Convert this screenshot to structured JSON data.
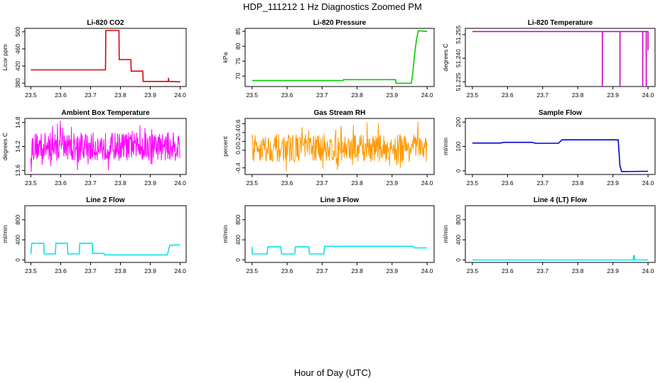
{
  "title": "HDP_111212  1 Hz Diagnostics Zoomed PM",
  "xlabel": "Hour of Day (UTC)",
  "chart_data": [
    {
      "type": "line",
      "title": "Li-820 CO2",
      "ylabel": "Licor ppm",
      "color": "#dd0000",
      "xlim": [
        23.5,
        24.0
      ],
      "xticks": [
        23.5,
        23.6,
        23.7,
        23.8,
        23.9,
        24.0
      ],
      "xticklabels": [
        "23.5",
        "23.6",
        "23.7",
        "23.8",
        "23.9",
        "24.0"
      ],
      "ylim": [
        372,
        508
      ],
      "yticks": [
        380,
        420,
        460,
        500
      ],
      "yticklabels": [
        "380",
        "420",
        "460",
        "500"
      ],
      "series": [
        {
          "x": [
            23.5,
            23.75,
            23.751,
            23.795,
            23.796,
            23.835,
            23.836,
            23.875,
            23.876,
            23.96,
            23.961,
            23.962,
            24.0
          ],
          "y": [
            411,
            411,
            503,
            503,
            435,
            435,
            408,
            408,
            384,
            384,
            392,
            384,
            383
          ]
        }
      ]
    },
    {
      "type": "line",
      "title": "Li-820 Pressure",
      "ylabel": "kPa",
      "color": "#00cc00",
      "xlim": [
        23.5,
        24.0
      ],
      "xticks": [
        23.5,
        23.6,
        23.7,
        23.8,
        23.9,
        24.0
      ],
      "xticklabels": [
        "23.5",
        "23.6",
        "23.7",
        "23.8",
        "23.9",
        "24.0"
      ],
      "ylim": [
        66.5,
        86
      ],
      "yticks": [
        70,
        75,
        80,
        85
      ],
      "yticklabels": [
        "70",
        "75",
        "80",
        "85"
      ],
      "series": [
        {
          "x": [
            23.5,
            23.76,
            23.761,
            23.91,
            23.911,
            23.955,
            23.96,
            23.965,
            23.97,
            23.975,
            24.0
          ],
          "y": [
            68.5,
            68.5,
            68.8,
            68.8,
            67.6,
            67.6,
            72,
            78,
            82.5,
            85.2,
            85.0
          ]
        }
      ]
    },
    {
      "type": "line",
      "title": "Li-820 Temperature",
      "ylabel": "degrees C",
      "color": "#cc00cc",
      "xlim": [
        23.5,
        24.0
      ],
      "xticks": [
        23.5,
        23.6,
        23.7,
        23.8,
        23.9,
        24.0
      ],
      "xticklabels": [
        "23.5",
        "23.6",
        "23.7",
        "23.8",
        "23.9",
        "24.0"
      ],
      "ylim": [
        51.222,
        51.259
      ],
      "yticks": [
        51.225,
        51.24,
        51.255
      ],
      "yticklabels": [
        "51.225",
        "51.240",
        "51.255"
      ],
      "series": [
        {
          "x": [
            23.5,
            23.87,
            23.87,
            23.87,
            23.92,
            23.92,
            23.92,
            23.985,
            23.985,
            23.985,
            23.995,
            23.995,
            23.995,
            24.0,
            24.0,
            24.0
          ],
          "y": [
            51.257,
            51.257,
            51.222,
            51.257,
            51.257,
            51.222,
            51.257,
            51.257,
            51.222,
            51.257,
            51.257,
            51.222,
            51.257,
            51.257,
            51.245,
            51.257
          ]
        }
      ]
    },
    {
      "type": "line",
      "title": "Ambient Box Temperature",
      "ylabel": "degrees C",
      "color": "#ff00ff",
      "noise": true,
      "xlim": [
        23.5,
        24.0
      ],
      "xticks": [
        23.5,
        23.6,
        23.7,
        23.8,
        23.9,
        24.0
      ],
      "xticklabels": [
        "23.5",
        "23.6",
        "23.7",
        "23.8",
        "23.9",
        "24.0"
      ],
      "ylim": [
        13.5,
        14.9
      ],
      "yticks": [
        13.6,
        14.2,
        14.8
      ],
      "yticklabels": [
        "13.6",
        "14.2",
        "14.8"
      ],
      "series": [
        {
          "center": 14.2,
          "min": 13.55,
          "max": 14.85
        }
      ]
    },
    {
      "type": "line",
      "title": "Gas Stream RH",
      "ylabel": "percent",
      "color": "#ff9900",
      "noise": true,
      "xlim": [
        23.5,
        24.0
      ],
      "xticks": [
        23.5,
        23.6,
        23.7,
        23.8,
        23.9,
        24.0
      ],
      "xticklabels": [
        "23.5",
        "23.6",
        "23.7",
        "23.8",
        "23.9",
        "24.0"
      ],
      "ylim": [
        -0.55,
        0.72
      ],
      "yticks": [
        -0.4,
        0.0,
        0.2,
        0.4,
        0.6
      ],
      "yticklabels": [
        "-0.4",
        "0.0",
        "0.2",
        "0.4",
        "0.6"
      ],
      "series": [
        {
          "center": 0.05,
          "min": -0.5,
          "max": 0.65
        }
      ]
    },
    {
      "type": "line",
      "title": "Sample Flow",
      "ylabel": "ml/min",
      "color": "#0000cc",
      "xlim": [
        23.5,
        24.0
      ],
      "xticks": [
        23.5,
        23.6,
        23.7,
        23.8,
        23.9,
        24.0
      ],
      "xticklabels": [
        "23.5",
        "23.6",
        "23.7",
        "23.8",
        "23.9",
        "24.0"
      ],
      "ylim": [
        -15,
        215
      ],
      "yticks": [
        0,
        100,
        200
      ],
      "yticklabels": [
        "0",
        "100",
        "200"
      ],
      "series": [
        {
          "x": [
            23.5,
            23.58,
            23.59,
            23.67,
            23.68,
            23.745,
            23.755,
            23.915,
            23.92,
            23.925,
            24.0
          ],
          "y": [
            114,
            114,
            117,
            117,
            113,
            113,
            127,
            127,
            20,
            -3,
            -2
          ]
        }
      ]
    },
    {
      "type": "line",
      "title": "Line 2 Flow",
      "ylabel": "ml/min",
      "color": "#00e5ee",
      "xlim": [
        23.5,
        24.0
      ],
      "xticks": [
        23.5,
        23.6,
        23.7,
        23.8,
        23.9,
        24.0
      ],
      "xticklabels": [
        "23.5",
        "23.6",
        "23.7",
        "23.8",
        "23.9",
        "24.0"
      ],
      "ylim": [
        -50,
        1080
      ],
      "yticks": [
        0,
        400,
        800
      ],
      "yticklabels": [
        "0",
        "400",
        "800"
      ],
      "series": [
        {
          "x": [
            23.5,
            23.503,
            23.543,
            23.545,
            23.582,
            23.584,
            23.622,
            23.624,
            23.662,
            23.664,
            23.705,
            23.707,
            23.745,
            23.747,
            23.957,
            23.965,
            24.0
          ],
          "y": [
            120,
            330,
            330,
            120,
            120,
            330,
            330,
            120,
            120,
            330,
            330,
            130,
            130,
            100,
            100,
            290,
            300
          ]
        }
      ]
    },
    {
      "type": "line",
      "title": "Line 3 Flow",
      "ylabel": "ml/min",
      "color": "#00e5ee",
      "xlim": [
        23.5,
        24.0
      ],
      "xticks": [
        23.5,
        23.6,
        23.7,
        23.8,
        23.9,
        24.0
      ],
      "xticklabels": [
        "23.5",
        "23.6",
        "23.7",
        "23.8",
        "23.9",
        "24.0"
      ],
      "ylim": [
        -50,
        1080
      ],
      "yticks": [
        0,
        400,
        800
      ],
      "yticklabels": [
        "0",
        "400",
        "800"
      ],
      "series": [
        {
          "x": [
            23.5,
            23.5,
            23.502,
            23.543,
            23.545,
            23.582,
            23.584,
            23.622,
            23.624,
            23.662,
            23.664,
            23.705,
            23.707,
            23.96,
            23.962,
            24.0
          ],
          "y": [
            260,
            120,
            120,
            120,
            260,
            260,
            120,
            120,
            260,
            260,
            120,
            120,
            270,
            270,
            240,
            240
          ]
        }
      ]
    },
    {
      "type": "line",
      "title": "Line 4 (LT) Flow",
      "ylabel": "ml/min",
      "color": "#00e5ee",
      "xlim": [
        23.5,
        24.0
      ],
      "xticks": [
        23.5,
        23.6,
        23.7,
        23.8,
        23.9,
        24.0
      ],
      "xticklabels": [
        "23.5",
        "23.6",
        "23.7",
        "23.8",
        "23.9",
        "24.0"
      ],
      "ylim": [
        -50,
        1080
      ],
      "yticks": [
        0,
        400,
        800
      ],
      "yticklabels": [
        "0",
        "400",
        "800"
      ],
      "series": [
        {
          "x": [
            23.5,
            23.958,
            23.959,
            23.96,
            23.961,
            23.962,
            24.0
          ],
          "y": [
            0,
            0,
            100,
            20,
            90,
            0,
            0
          ]
        }
      ]
    }
  ]
}
